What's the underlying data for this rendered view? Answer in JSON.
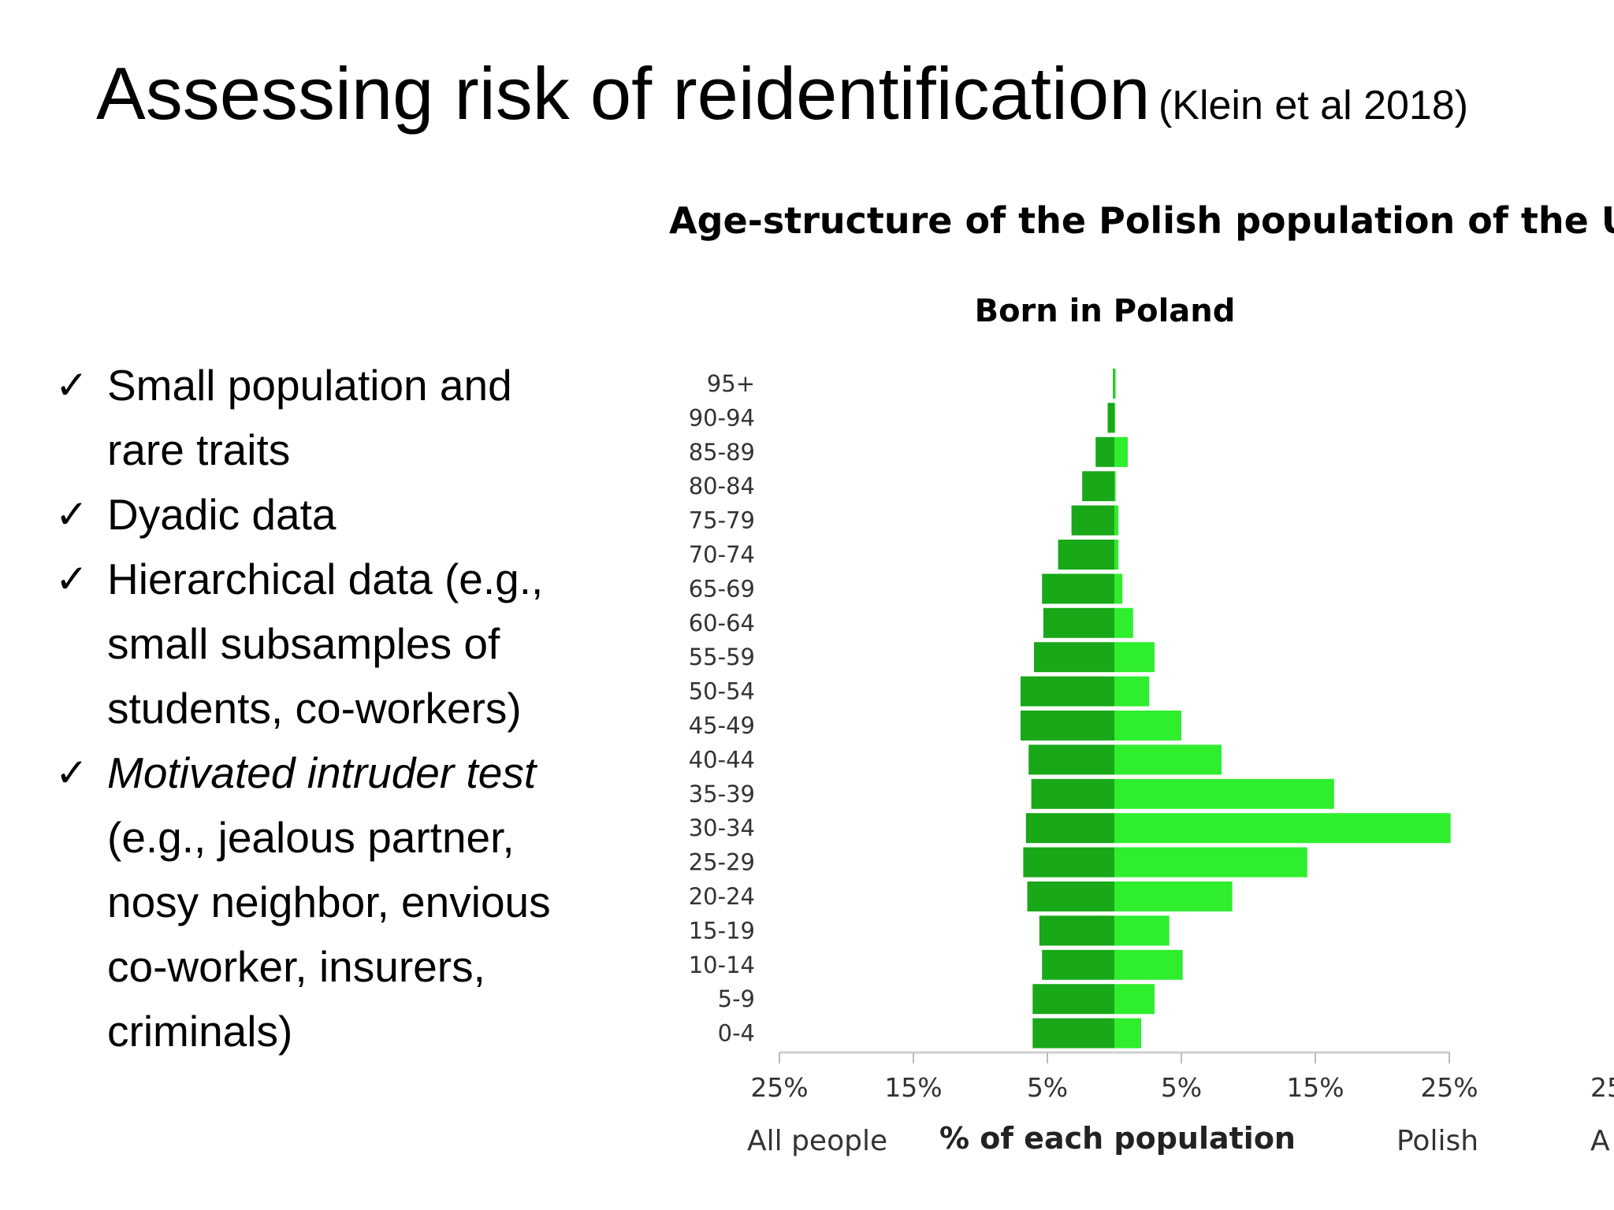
{
  "slide": {
    "title": "Assessing risk of reidentification",
    "citation": "(Klein et al 2018)",
    "bullet_symbol": "✓",
    "bullets": [
      {
        "lines": [
          "Small population and",
          "rare traits"
        ]
      },
      {
        "lines": [
          "Dyadic data"
        ]
      },
      {
        "lines": [
          "Hierarchical data (e.g.,",
          "small subsamples of",
          "students, co-workers)"
        ]
      },
      {
        "lines": [
          "Motivated intruder test",
          "(e.g., jealous partner,",
          "nosy neighbor, envious",
          "co-worker, insurers,",
          "criminals)"
        ],
        "first_line_italic": true
      }
    ]
  },
  "chart_data": {
    "type": "bar",
    "orientation": "horizontal-pyramid",
    "title": "Age-structure of the Polish population of the UK,",
    "subtitle": "Born in Poland",
    "xlabel": "% of each population",
    "left_side_label": "All people",
    "right_side_label": "Polish",
    "clipped_right_tick": "25",
    "clipped_right_label": "A",
    "tick_labels": [
      "25%",
      "15%",
      "5%",
      "5%",
      "15%",
      "25%"
    ],
    "xlim": [
      -25,
      25
    ],
    "categories": [
      "95+",
      "90-94",
      "85-89",
      "80-84",
      "75-79",
      "70-74",
      "65-69",
      "60-64",
      "55-59",
      "50-54",
      "45-49",
      "40-44",
      "35-39",
      "30-34",
      "25-29",
      "20-24",
      "15-19",
      "10-14",
      "5-9",
      "0-4"
    ],
    "series": [
      {
        "name": "All people",
        "color": "#18a818",
        "values": [
          0.1,
          0.5,
          1.4,
          2.4,
          3.2,
          4.2,
          5.4,
          5.3,
          6.0,
          7.0,
          7.0,
          6.4,
          6.2,
          6.6,
          6.8,
          6.5,
          5.6,
          5.4,
          6.1,
          6.1
        ]
      },
      {
        "name": "Polish",
        "color": "#2eee2e",
        "values": [
          0.1,
          0.05,
          1.0,
          0.1,
          0.3,
          0.3,
          0.6,
          1.4,
          3.0,
          2.6,
          5.0,
          8.0,
          16.4,
          25.1,
          14.4,
          8.8,
          4.1,
          5.1,
          3.0,
          2.0
        ]
      }
    ]
  }
}
